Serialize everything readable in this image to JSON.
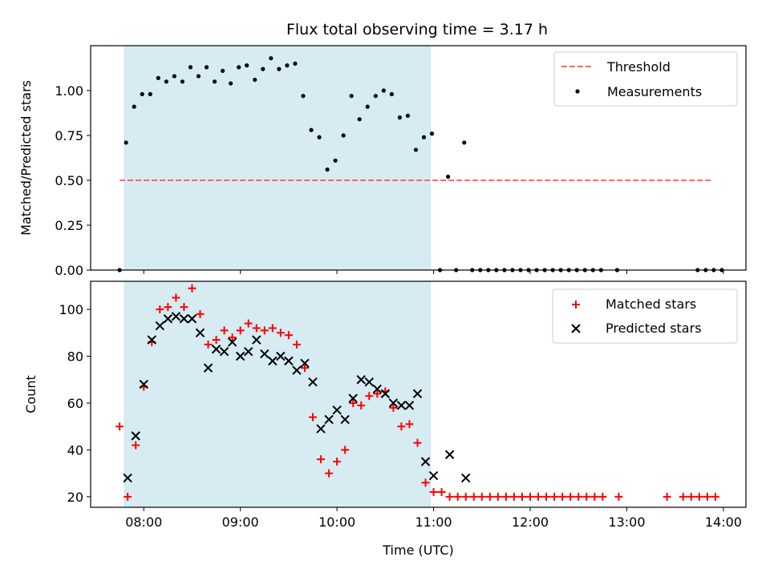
{
  "chart_data": [
    {
      "type": "scatter",
      "title": "Flux total observing time = 3.17 h",
      "xlabel": "",
      "ylabel": "Matched/Predicted stars",
      "xlim": [
        "07:27",
        "14:14"
      ],
      "ylim": [
        0,
        1.25
      ],
      "yticks": [
        0.0,
        0.25,
        0.5,
        0.75,
        1.0
      ],
      "ytick_labels": [
        "0.00",
        "0.25",
        "0.50",
        "0.75",
        "1.00"
      ],
      "x_unit": "Time (UTC)",
      "shaded_region": {
        "start": "07:48",
        "end": "10:58",
        "color": "#add8e6"
      },
      "threshold": {
        "name": "Threshold",
        "value": 0.5,
        "x_start": "07:45",
        "x_end": "13:53",
        "color": "#ff6666",
        "style": "dashed"
      },
      "legend": {
        "placement": "top-right",
        "entries": [
          "Threshold",
          "Measurements"
        ]
      },
      "series": [
        {
          "name": "Measurements",
          "marker": "dot",
          "color": "#000000",
          "x": [
            "07:45",
            "07:49",
            "07:54",
            "07:59",
            "08:04",
            "08:09",
            "08:14",
            "08:19",
            "08:24",
            "08:29",
            "08:34",
            "08:39",
            "08:44",
            "08:49",
            "08:54",
            "08:59",
            "09:04",
            "09:09",
            "09:14",
            "09:19",
            "09:24",
            "09:29",
            "09:34",
            "09:39",
            "09:44",
            "09:49",
            "09:54",
            "09:59",
            "10:04",
            "10:09",
            "10:14",
            "10:19",
            "10:24",
            "10:29",
            "10:34",
            "10:39",
            "10:44",
            "10:49",
            "10:54",
            "10:59",
            "11:04",
            "11:09",
            "11:14",
            "11:19",
            "11:24",
            "11:29",
            "11:34",
            "11:39",
            "11:44",
            "11:49",
            "11:54",
            "11:59",
            "12:04",
            "12:09",
            "12:14",
            "12:19",
            "12:24",
            "12:29",
            "12:34",
            "12:39",
            "12:44",
            "12:54",
            "13:44",
            "13:49",
            "13:54",
            "13:59"
          ],
          "y": [
            0.0,
            0.71,
            0.91,
            0.98,
            0.98,
            1.07,
            1.05,
            1.08,
            1.05,
            1.13,
            1.08,
            1.13,
            1.05,
            1.11,
            1.04,
            1.13,
            1.14,
            1.06,
            1.12,
            1.18,
            1.12,
            1.14,
            1.15,
            0.97,
            0.78,
            0.74,
            0.56,
            0.61,
            0.75,
            0.97,
            0.84,
            0.91,
            0.97,
            1.0,
            0.98,
            0.85,
            0.86,
            0.67,
            0.74,
            0.76,
            0.0,
            0.52,
            0.0,
            0.71,
            0.0,
            0.0,
            0.0,
            0.0,
            0.0,
            0.0,
            0.0,
            0.0,
            0.0,
            0.0,
            0.0,
            0.0,
            0.0,
            0.0,
            0.0,
            0.0,
            0.0,
            0.0,
            0.0,
            0.0,
            0.0,
            0.0
          ]
        }
      ]
    },
    {
      "type": "scatter",
      "title": "",
      "xlabel": "Time (UTC)",
      "ylabel": "Count",
      "xlim": [
        "07:27",
        "14:14"
      ],
      "ylim": [
        15.5,
        112
      ],
      "yticks": [
        20,
        40,
        60,
        80,
        100
      ],
      "ytick_labels": [
        "20",
        "40",
        "60",
        "80",
        "100"
      ],
      "xticks": [
        "08:00",
        "09:00",
        "10:00",
        "11:00",
        "12:00",
        "13:00",
        "14:00"
      ],
      "shaded_region": {
        "start": "07:48",
        "end": "10:58",
        "color": "#add8e6"
      },
      "legend": {
        "placement": "top-right",
        "entries": [
          "Matched stars",
          "Predicted stars"
        ]
      },
      "series": [
        {
          "name": "Matched stars",
          "marker": "plus",
          "color": "#ff0000",
          "x": [
            "07:45",
            "07:50",
            "07:55",
            "08:00",
            "08:05",
            "08:10",
            "08:15",
            "08:20",
            "08:25",
            "08:30",
            "08:35",
            "08:40",
            "08:45",
            "08:50",
            "08:55",
            "09:00",
            "09:05",
            "09:10",
            "09:15",
            "09:20",
            "09:25",
            "09:30",
            "09:35",
            "09:40",
            "09:45",
            "09:50",
            "09:55",
            "10:00",
            "10:05",
            "10:10",
            "10:15",
            "10:20",
            "10:25",
            "10:30",
            "10:35",
            "10:40",
            "10:45",
            "10:50",
            "10:55",
            "11:00",
            "11:05",
            "11:10",
            "11:15",
            "11:20",
            "11:25",
            "11:30",
            "11:35",
            "11:40",
            "11:45",
            "11:50",
            "11:55",
            "12:00",
            "12:05",
            "12:10",
            "12:15",
            "12:20",
            "12:25",
            "12:30",
            "12:35",
            "12:40",
            "12:45",
            "12:55",
            "13:25",
            "13:35",
            "13:40",
            "13:45",
            "13:50",
            "13:55"
          ],
          "y": [
            50,
            20,
            42,
            67,
            86,
            100,
            101,
            105,
            101,
            109,
            98,
            85,
            87,
            91,
            88,
            91,
            94,
            92,
            91,
            92,
            90,
            89,
            85,
            75,
            54,
            36,
            30,
            35,
            40,
            60,
            59,
            63,
            64,
            65,
            58,
            50,
            51,
            43,
            26,
            22,
            22,
            20,
            20,
            20,
            20,
            20,
            20,
            20,
            20,
            20,
            20,
            20,
            20,
            20,
            20,
            20,
            20,
            20,
            20,
            20,
            20,
            20,
            20,
            20,
            20,
            20,
            20,
            20
          ]
        },
        {
          "name": "Predicted stars",
          "marker": "x",
          "color": "#000000",
          "x": [
            "07:50",
            "07:55",
            "08:00",
            "08:05",
            "08:10",
            "08:15",
            "08:20",
            "08:25",
            "08:30",
            "08:35",
            "08:40",
            "08:45",
            "08:50",
            "08:55",
            "09:00",
            "09:05",
            "09:10",
            "09:15",
            "09:20",
            "09:25",
            "09:30",
            "09:35",
            "09:40",
            "09:45",
            "09:50",
            "09:55",
            "10:00",
            "10:05",
            "10:10",
            "10:15",
            "10:20",
            "10:25",
            "10:30",
            "10:35",
            "10:40",
            "10:45",
            "10:50",
            "10:55",
            "11:00",
            "11:10",
            "11:20"
          ],
          "y": [
            28,
            46,
            68,
            87,
            93,
            96,
            97,
            96,
            96,
            90,
            75,
            83,
            82,
            86,
            80,
            82,
            87,
            81,
            78,
            80,
            78,
            74,
            77,
            69,
            49,
            53,
            57,
            53,
            62,
            70,
            69,
            66,
            64,
            60,
            59,
            59,
            64,
            35,
            29,
            38,
            28
          ]
        }
      ]
    }
  ]
}
